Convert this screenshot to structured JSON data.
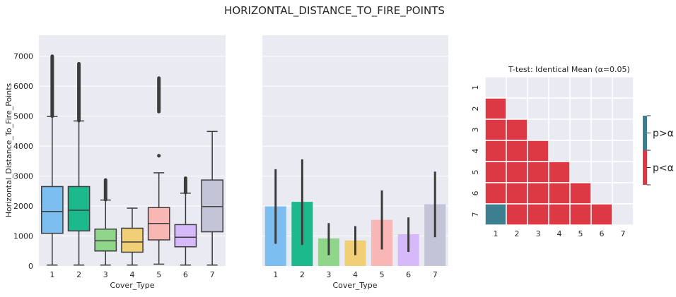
{
  "figure": {
    "suptitle": "HORIZONTAL_DISTANCE_TO_FIRE_POINTS"
  },
  "colors": {
    "background": "#EAEAF2",
    "grid": "#ffffff",
    "boxes": [
      "#7DBEF0",
      "#1CB98C",
      "#8FD68A",
      "#F0CF76",
      "#F8B6B5",
      "#D5B9F8",
      "#C4C4D8"
    ],
    "heat_low": "#DC3945",
    "heat_high": "#3C7F91",
    "heat_none": "#EAEAF2",
    "edge": "#3C3C3C"
  },
  "chart_data": [
    {
      "type": "box",
      "xlabel": "Cover_Type",
      "ylabel": "Horizontal_Distance_To_Fire_Points",
      "categories": [
        "1",
        "2",
        "3",
        "4",
        "5",
        "6",
        "7"
      ],
      "yticks": [
        0,
        1000,
        2000,
        3000,
        4000,
        5000,
        6000,
        7000
      ],
      "ylim": [
        0,
        7700
      ],
      "grid": true,
      "boxes": [
        {
          "category": "1",
          "whisker_low": 30,
          "q1": 1090,
          "median": 1820,
          "q3": 2650,
          "whisker_high": 4990,
          "outliers_from": 5000,
          "outliers_to": 7000
        },
        {
          "category": "2",
          "whisker_low": 30,
          "q1": 1170,
          "median": 1860,
          "q3": 2650,
          "whisker_high": 4840,
          "outliers_from": 4850,
          "outliers_to": 6750
        },
        {
          "category": "3",
          "whisker_low": 30,
          "q1": 500,
          "median": 840,
          "q3": 1230,
          "whisker_high": 2200,
          "outliers_from": 2210,
          "outliers_to": 2870
        },
        {
          "category": "4",
          "whisker_low": 30,
          "q1": 460,
          "median": 800,
          "q3": 1260,
          "whisker_high": 1930,
          "outliers_from": null,
          "outliers_to": null
        },
        {
          "category": "5",
          "whisker_low": 60,
          "q1": 870,
          "median": 1420,
          "q3": 1950,
          "whisker_high": 3110,
          "outliers_from": 5150,
          "outliers_to": 6270,
          "extra_outliers": [
            3680
          ]
        },
        {
          "category": "6",
          "whisker_low": 30,
          "q1": 640,
          "median": 960,
          "q3": 1380,
          "whisker_high": 2430,
          "outliers_from": 2450,
          "outliers_to": 2930
        },
        {
          "category": "7",
          "whisker_low": 30,
          "q1": 1140,
          "median": 1980,
          "q3": 2870,
          "whisker_high": 4490,
          "outliers_from": null,
          "outliers_to": null
        }
      ]
    },
    {
      "type": "bar",
      "xlabel": "Cover_Type",
      "categories": [
        "1",
        "2",
        "3",
        "4",
        "5",
        "6",
        "7"
      ],
      "values": [
        1990,
        2140,
        920,
        850,
        1540,
        1060,
        2060
      ],
      "error_low": [
        740,
        700,
        360,
        360,
        550,
        470,
        960
      ],
      "error_high": [
        3230,
        3560,
        1430,
        1330,
        2520,
        1620,
        3150
      ],
      "ylim": [
        0,
        7700
      ],
      "grid": true
    },
    {
      "type": "heatmap",
      "title": "T-test: Identical Mean (α=0.05)",
      "rows": [
        "1",
        "2",
        "3",
        "4",
        "5",
        "6",
        "7"
      ],
      "cols": [
        "1",
        "2",
        "3",
        "4",
        "5",
        "6",
        "7"
      ],
      "matrix": [
        [
          null,
          null,
          null,
          null,
          null,
          null,
          null
        ],
        [
          0,
          null,
          null,
          null,
          null,
          null,
          null
        ],
        [
          0,
          0,
          null,
          null,
          null,
          null,
          null
        ],
        [
          0,
          0,
          0,
          null,
          null,
          null,
          null
        ],
        [
          0,
          0,
          0,
          0,
          null,
          null,
          null
        ],
        [
          0,
          0,
          0,
          0,
          0,
          null,
          null
        ],
        [
          1,
          0,
          0,
          0,
          0,
          0,
          null
        ]
      ],
      "colorbar_labels": [
        "p>α",
        "p<α"
      ]
    }
  ]
}
